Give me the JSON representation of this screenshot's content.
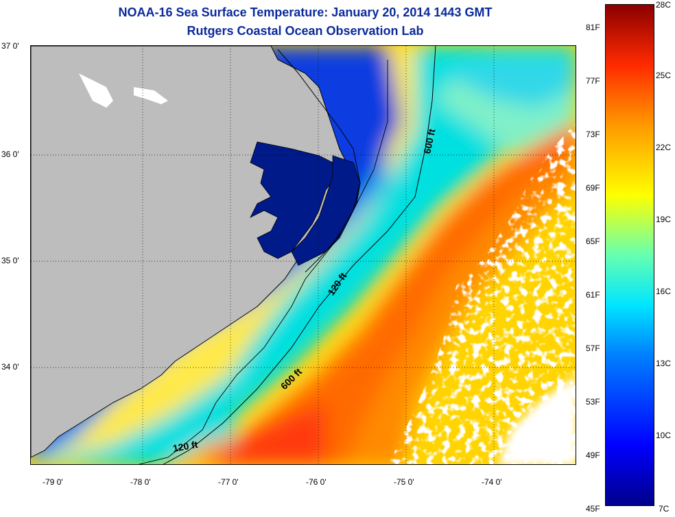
{
  "title": {
    "line1": "NOAA-16 Sea Surface Temperature:  January 20, 2014 1443 GMT",
    "line2": "Rutgers Coastal Ocean Observation Lab"
  },
  "map": {
    "lat_labels": [
      "37 0'",
      "36 0'",
      "35 0'",
      "34 0'"
    ],
    "lon_labels": [
      "-79 0'",
      "-78 0'",
      "-77 0'",
      "-76 0'",
      "-75 0'",
      "-74 0'"
    ],
    "isobath_labels": [
      "600 ft",
      "120 ft",
      "600 ft",
      "120 ft"
    ],
    "colors": {
      "land": "#bdbdbd",
      "cloud": "#ffffff",
      "coast": "#000000"
    }
  },
  "colorbar": {
    "fahrenheit_labels": [
      "81F",
      "77F",
      "73F",
      "69F",
      "65F",
      "61F",
      "57F",
      "53F",
      "49F",
      "45F"
    ],
    "celsius_labels": [
      "28C",
      "25C",
      "22C",
      "19C",
      "16C",
      "13C",
      "10C",
      "7C"
    ]
  }
}
